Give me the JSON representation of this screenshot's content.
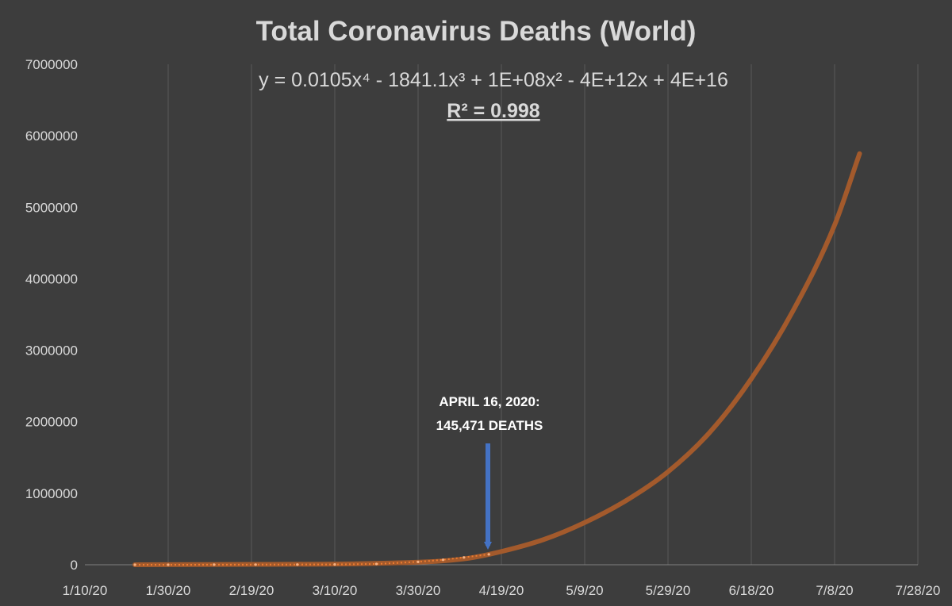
{
  "chart_data": {
    "type": "scatter",
    "title": "Total Coronavirus Deaths (World)",
    "xlabel": "",
    "ylabel": "",
    "xlim": [
      "2020-01-10",
      "2020-07-28"
    ],
    "ylim": [
      0,
      7000000
    ],
    "x_tick_labels": [
      "1/10/20",
      "1/30/20",
      "2/19/20",
      "3/10/20",
      "3/30/20",
      "4/19/20",
      "5/9/20",
      "5/29/20",
      "6/18/20",
      "7/8/20",
      "7/28/20"
    ],
    "y_tick_labels": [
      "0",
      "1000000",
      "2000000",
      "3000000",
      "4000000",
      "5000000",
      "6000000",
      "7000000"
    ],
    "grid": "vertical",
    "colors": {
      "background": "#3d3d3d",
      "trendline": "#a35a2c",
      "data_points": "#ed7d31",
      "arrow": "#4472c4",
      "gridline": "#595959",
      "text": "#d9d9d9"
    },
    "observed_series": {
      "x": [
        "2020-01-22",
        "2020-01-30",
        "2020-02-10",
        "2020-02-20",
        "2020-03-01",
        "2020-03-10",
        "2020-03-20",
        "2020-03-30",
        "2020-04-05",
        "2020-04-10",
        "2020-04-16"
      ],
      "y": [
        17,
        213,
        1013,
        2247,
        3085,
        4262,
        11390,
        40598,
        69418,
        102734,
        145471
      ]
    },
    "trendline": {
      "type": "polynomial, order 4",
      "x": [
        "2020-01-22",
        "2020-02-20",
        "2020-03-20",
        "2020-04-09",
        "2020-04-16",
        "2020-04-29",
        "2020-05-09",
        "2020-05-19",
        "2020-05-29",
        "2020-06-08",
        "2020-06-18",
        "2020-06-28",
        "2020-07-08",
        "2020-07-14"
      ],
      "y": [
        0,
        5000,
        20000,
        75000,
        145471,
        350000,
        590000,
        900000,
        1300000,
        1850000,
        2600000,
        3550000,
        4750000,
        5750000
      ]
    },
    "equation": "y = 0.0105x⁴ - 1841.1x³ + 1E+08x² - 4E+12x + 4E+16",
    "r_squared": "R² = 0.998",
    "annotation": {
      "line1": "APRIL 16, 2020:",
      "line2": "145,471 DEATHS",
      "date": "2020-04-16",
      "value": 145471
    }
  }
}
